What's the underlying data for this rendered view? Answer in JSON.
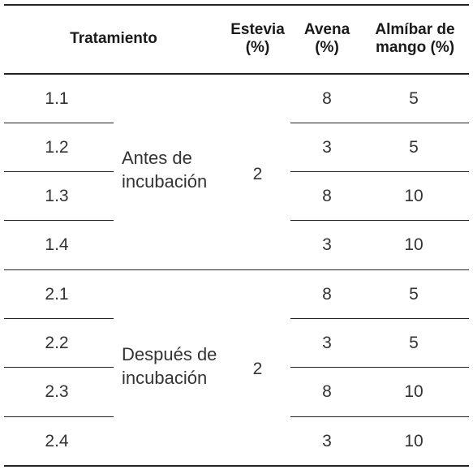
{
  "headers": {
    "treatment": "Tratamiento",
    "stevia_line1": "Estevia",
    "stevia_line2": "(%)",
    "oats_line1": "Avena",
    "oats_line2": "(%)",
    "syrup_line1": "Almíbar de",
    "syrup_line2": "mango (%)"
  },
  "groups": [
    {
      "label_line1": "Antes de",
      "label_line2": "incubación",
      "stevia": "2"
    },
    {
      "label_line1": "Después de",
      "label_line2": "incubación",
      "stevia": "2"
    }
  ],
  "rows": [
    {
      "id": "1.1",
      "avena": "8",
      "almibar": "5"
    },
    {
      "id": "1.2",
      "avena": "3",
      "almibar": "5"
    },
    {
      "id": "1.3",
      "avena": "8",
      "almibar": "10"
    },
    {
      "id": "1.4",
      "avena": "3",
      "almibar": "10"
    },
    {
      "id": "2.1",
      "avena": "8",
      "almibar": "5"
    },
    {
      "id": "2.2",
      "avena": "3",
      "almibar": "5"
    },
    {
      "id": "2.3",
      "avena": "8",
      "almibar": "10"
    },
    {
      "id": "2.4",
      "avena": "3",
      "almibar": "10"
    }
  ]
}
